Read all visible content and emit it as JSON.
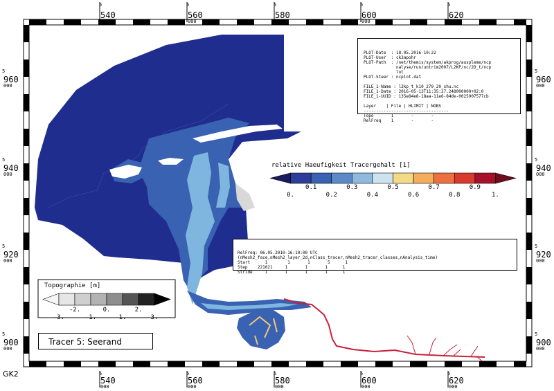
{
  "map": {
    "grid_prefix": "5",
    "grid_suffix": "000",
    "x_ticks": [
      "540",
      "560",
      "580",
      "600",
      "620"
    ],
    "y_ticks": [
      "960",
      "940",
      "920",
      "900"
    ],
    "crs_label": "GK2",
    "colors": {
      "sea": "#1f2d8f",
      "land": "#ffffff",
      "tidal_flat": "#3a5fb5",
      "channel": "#7fb6e0",
      "river": "#c8203a",
      "shallow": "#d8d8d8"
    }
  },
  "plot_info": {
    "lines": [
      "PLOT-Date  : 18.05.2016-10:22",
      "PLOT-User  : ck3apohr",
      "PLOT-Path  : /net/themis/system/akprog/auspleme/ncp",
      "             nalyse/run/untrim2007/L2KP/nc/2D_t/ncp",
      "             lot",
      "PLOT-Steer : ncplot.dat",
      "",
      "FILE_1-Name : l2kp_t_k10_279_20_shu.nc",
      "FILE_1-Date : 2016-05-13T11:35:27.248000000+02:0",
      "FILE_1-UUID : 135e84e8-18aa-11e6-84de-0025907577cb",
      "",
      "Layer    | File | HLIMIT | NOBS",
      "----------------------------------",
      "Topo       1       -       -",
      "RelFreq    1       -       -"
    ]
  },
  "relfreq_info": {
    "lines": [
      "RelFreq: 06.05.2010-16:10:00 UTC",
      "(nMesh2_face,nMesh2_layer_2d,nClass_tracer,nMesh2_tracer_classes,nAnalysis_time)",
      "Start      1        1       1       5      1",
      "Step    221021     1       1       1      1",
      "Stride     1       1       1       1      1"
    ]
  },
  "legend_tracer": {
    "title": "relative Haeufigkeit Tracergehalt [1]",
    "colors": [
      "#1a1a5e",
      "#2e3c9a",
      "#3a62b2",
      "#5c8ac8",
      "#8fb9df",
      "#cde3ef",
      "#f3da86",
      "#f5ad5c",
      "#ed7040",
      "#d93a2c",
      "#a6102c",
      "#6d0f1e"
    ],
    "labels_low": [
      "0.",
      "0.2",
      "0.4",
      "0.6",
      "0.8",
      "1."
    ],
    "labels_high": [
      "0.1",
      "0.3",
      "0.5",
      "0.7",
      "0.9"
    ]
  },
  "legend_topo": {
    "title": "Topographie [m]",
    "colors": [
      "#f5f5f5",
      "#e6e6e6",
      "#cfcfcf",
      "#b3b3b3",
      "#8e8e8e",
      "#555555",
      "#222222",
      "#000000"
    ],
    "labels_low": [
      "-3.",
      "-1.",
      "1.",
      "3."
    ],
    "labels_high": [
      "-2.",
      "0.",
      "2."
    ]
  },
  "tracer_label": "Tracer 5: Seerand"
}
